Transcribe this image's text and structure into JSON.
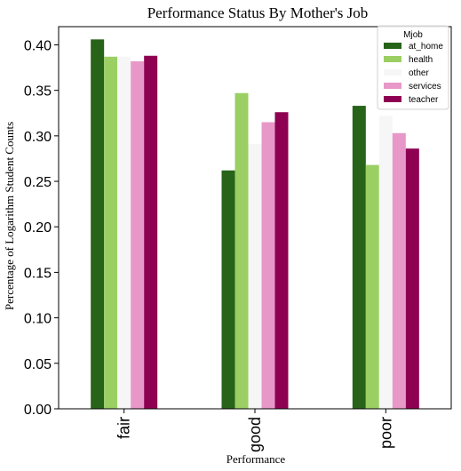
{
  "chart_data": {
    "type": "bar",
    "title": "Performance Status By Mother's Job",
    "xlabel": "Performance",
    "ylabel": "Percentage of Logarithm Student Counts",
    "categories": [
      "fair",
      "good",
      "poor"
    ],
    "ylim": [
      0,
      0.42
    ],
    "yticks": [
      "0.00",
      "0.05",
      "0.10",
      "0.15",
      "0.20",
      "0.25",
      "0.30",
      "0.35",
      "0.40"
    ],
    "grid": false,
    "legend": {
      "title": "Mjob",
      "placement": "top-right"
    },
    "series": [
      {
        "name": "at_home",
        "color": "#276419",
        "values": [
          0.406,
          0.262,
          0.333
        ]
      },
      {
        "name": "health",
        "color": "#9bcf63",
        "values": [
          0.387,
          0.347,
          0.268
        ]
      },
      {
        "name": "other",
        "color": "#f6f6f6",
        "values": [
          0.387,
          0.291,
          0.322
        ]
      },
      {
        "name": "services",
        "color": "#e898c8",
        "values": [
          0.382,
          0.315,
          0.303
        ]
      },
      {
        "name": "teacher",
        "color": "#8e0152",
        "values": [
          0.388,
          0.326,
          0.286
        ]
      }
    ]
  }
}
